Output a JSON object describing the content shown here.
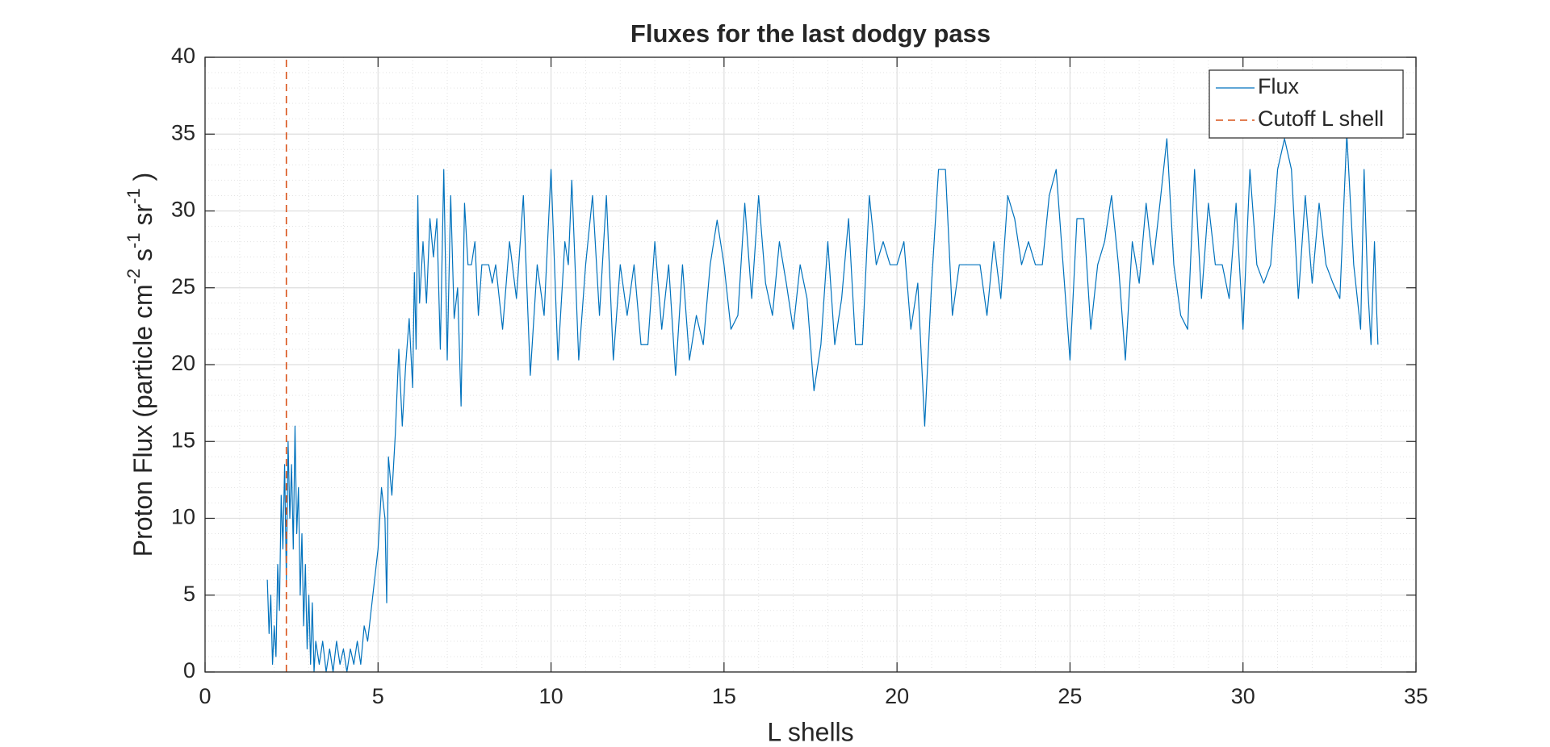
{
  "chart_data": {
    "type": "line",
    "title": "Fluxes for the last dodgy pass",
    "xlabel": "L shells",
    "ylabel_parts": [
      "Proton Flux (particle cm",
      "-2",
      " s",
      "-1",
      " sr",
      "-1",
      " )"
    ],
    "xlim": [
      0,
      35
    ],
    "ylim": [
      0,
      40
    ],
    "xticks": [
      0,
      5,
      10,
      15,
      20,
      25,
      30,
      35
    ],
    "yticks": [
      0,
      5,
      10,
      15,
      20,
      25,
      30,
      35,
      40
    ],
    "grid": true,
    "minor_grid": true,
    "legend": "upper right",
    "series": [
      {
        "name": "Flux",
        "color": "#0072BD",
        "style": "solid",
        "x": [
          1.8,
          1.85,
          1.9,
          1.95,
          2.0,
          2.05,
          2.1,
          2.15,
          2.2,
          2.25,
          2.3,
          2.35,
          2.4,
          2.45,
          2.5,
          2.55,
          2.6,
          2.65,
          2.7,
          2.75,
          2.8,
          2.85,
          2.9,
          2.95,
          3.0,
          3.05,
          3.1,
          3.15,
          3.2,
          3.3,
          3.4,
          3.5,
          3.6,
          3.7,
          3.8,
          3.9,
          4.0,
          4.1,
          4.2,
          4.3,
          4.4,
          4.5,
          4.6,
          4.7,
          4.8,
          4.9,
          5.0,
          5.1,
          5.2,
          5.25,
          5.3,
          5.4,
          5.5,
          5.6,
          5.7,
          5.8,
          5.9,
          6.0,
          6.05,
          6.1,
          6.15,
          6.2,
          6.3,
          6.4,
          6.5,
          6.6,
          6.7,
          6.8,
          6.9,
          7.0,
          7.1,
          7.2,
          7.3,
          7.4,
          7.5,
          7.6,
          7.7,
          7.8,
          7.9,
          8.0,
          8.2,
          8.3,
          8.4,
          8.6,
          8.8,
          9.0,
          9.2,
          9.4,
          9.6,
          9.8,
          10.0,
          10.2,
          10.4,
          10.5,
          10.6,
          10.8,
          11.0,
          11.2,
          11.4,
          11.6,
          11.8,
          12.0,
          12.2,
          12.4,
          12.6,
          12.8,
          13.0,
          13.2,
          13.4,
          13.6,
          13.8,
          14.0,
          14.2,
          14.4,
          14.6,
          14.8,
          15.0,
          15.2,
          15.4,
          15.6,
          15.8,
          16.0,
          16.2,
          16.4,
          16.6,
          16.8,
          17.0,
          17.2,
          17.4,
          17.6,
          17.8,
          18.0,
          18.2,
          18.4,
          18.6,
          18.8,
          19.0,
          19.2,
          19.4,
          19.6,
          19.8,
          20.0,
          20.2,
          20.4,
          20.6,
          20.8,
          21.0,
          21.2,
          21.4,
          21.6,
          21.8,
          22.0,
          22.2,
          22.4,
          22.6,
          22.8,
          23.0,
          23.2,
          23.4,
          23.6,
          23.8,
          24.0,
          24.2,
          24.4,
          24.6,
          24.8,
          25.0,
          25.2,
          25.4,
          25.6,
          25.8,
          26.0,
          26.2,
          26.4,
          26.6,
          26.8,
          27.0,
          27.2,
          27.4,
          27.6,
          27.8,
          28.0,
          28.2,
          28.4,
          28.6,
          28.8,
          29.0,
          29.2,
          29.4,
          29.6,
          29.8,
          30.0,
          30.2,
          30.4,
          30.6,
          30.8,
          31.0,
          31.2,
          31.4,
          31.6,
          31.8,
          32.0,
          32.2,
          32.4,
          32.6,
          32.8,
          33.0,
          33.2,
          33.4,
          33.5,
          33.6,
          33.7,
          33.8,
          33.85,
          33.9
        ],
        "values": [
          6,
          2.5,
          5,
          0.5,
          3,
          1,
          7,
          4,
          11.5,
          8,
          13.5,
          6,
          15,
          10,
          13.5,
          8,
          16,
          9,
          12,
          5,
          9,
          3,
          7,
          1.5,
          5,
          0.5,
          4.5,
          0,
          2,
          0.5,
          2,
          0,
          1.5,
          0,
          2,
          0.5,
          1.5,
          0,
          1.5,
          0.5,
          2,
          0.5,
          3,
          2,
          4,
          6,
          8,
          12,
          10,
          4.5,
          14,
          11.5,
          15.5,
          21,
          16,
          20,
          23,
          18.5,
          26,
          21,
          31,
          24,
          28,
          24,
          29.5,
          27,
          29.5,
          21,
          32.7,
          20.3,
          31,
          23,
          25,
          17.3,
          30.5,
          26.5,
          26.5,
          28,
          23.2,
          26.5,
          26.5,
          25.3,
          26.5,
          22.3,
          28,
          24.3,
          31,
          19.3,
          26.5,
          23.2,
          32.7,
          20.3,
          28,
          26.5,
          32,
          20.3,
          26.5,
          31,
          23.2,
          31,
          20.3,
          26.5,
          23.2,
          26.5,
          21.3,
          21.3,
          28,
          22.3,
          26.5,
          19.3,
          26.5,
          20.3,
          23.2,
          21.3,
          26.5,
          29.4,
          26.5,
          22.3,
          23.2,
          30.5,
          24.3,
          31,
          25.3,
          23.2,
          28,
          25.3,
          22.3,
          26.5,
          24.3,
          18.3,
          21.3,
          28,
          21.3,
          24.3,
          29.5,
          21.3,
          21.3,
          31,
          26.5,
          28,
          26.5,
          26.5,
          28,
          22.3,
          25.3,
          16,
          25.3,
          32.7,
          32.7,
          23.2,
          26.5,
          26.5,
          26.5,
          26.5,
          23.2,
          28,
          24.3,
          31,
          29.5,
          26.5,
          28,
          26.5,
          26.5,
          31,
          32.7,
          26.5,
          20.3,
          29.5,
          29.5,
          22.3,
          26.5,
          28,
          31,
          26.5,
          20.3,
          28,
          25.3,
          30.5,
          26.5,
          30.5,
          34.7,
          26.5,
          23.2,
          22.3,
          32.7,
          24.3,
          30.5,
          26.5,
          26.5,
          24.3,
          30.5,
          22.3,
          32.7,
          26.5,
          25.3,
          26.5,
          32.7,
          34.7,
          32.7,
          24.3,
          31,
          25.3,
          30.5,
          26.5,
          25.3,
          24.3,
          35,
          26.5,
          22.3,
          32.7,
          25.3,
          21.3,
          28,
          24.3,
          21.3
        ]
      },
      {
        "name": "Cutoff L shell",
        "color": "#D95319",
        "style": "dashed",
        "x": [
          2.35,
          2.35
        ],
        "values": [
          0,
          40
        ]
      }
    ]
  }
}
